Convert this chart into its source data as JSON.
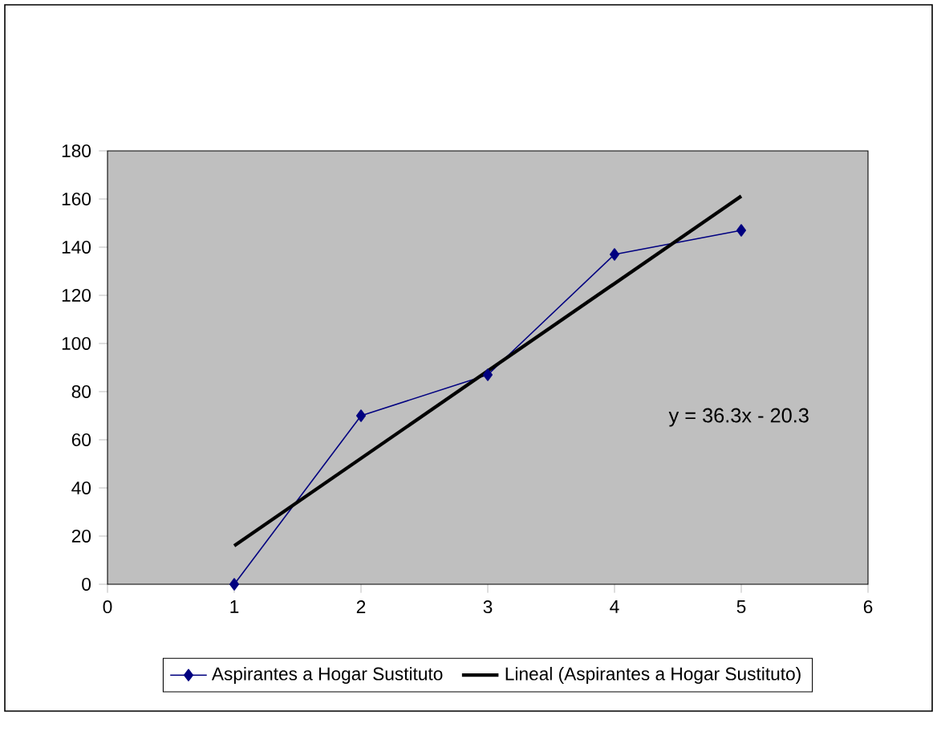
{
  "chart_data": {
    "type": "line",
    "x": [
      1,
      2,
      3,
      4,
      5
    ],
    "xlim": [
      0,
      6
    ],
    "xticks": [
      0,
      1,
      2,
      3,
      4,
      5,
      6
    ],
    "ylim": [
      0,
      180
    ],
    "yticks": [
      0,
      20,
      40,
      60,
      80,
      100,
      120,
      140,
      160,
      180
    ],
    "series": [
      {
        "name": "Aspirantes a Hogar Sustituto",
        "color": "#000080",
        "marker": "diamond",
        "values": [
          0,
          70,
          87,
          137,
          147
        ]
      },
      {
        "name": "Lineal (Aspirantes a Hogar Sustituto)",
        "color": "#000000",
        "marker": "none",
        "x": [
          1,
          5
        ],
        "values": [
          16,
          161.2
        ]
      }
    ],
    "annotations": [
      "y = 36.3x - 20.3"
    ],
    "legend": "bottom"
  }
}
